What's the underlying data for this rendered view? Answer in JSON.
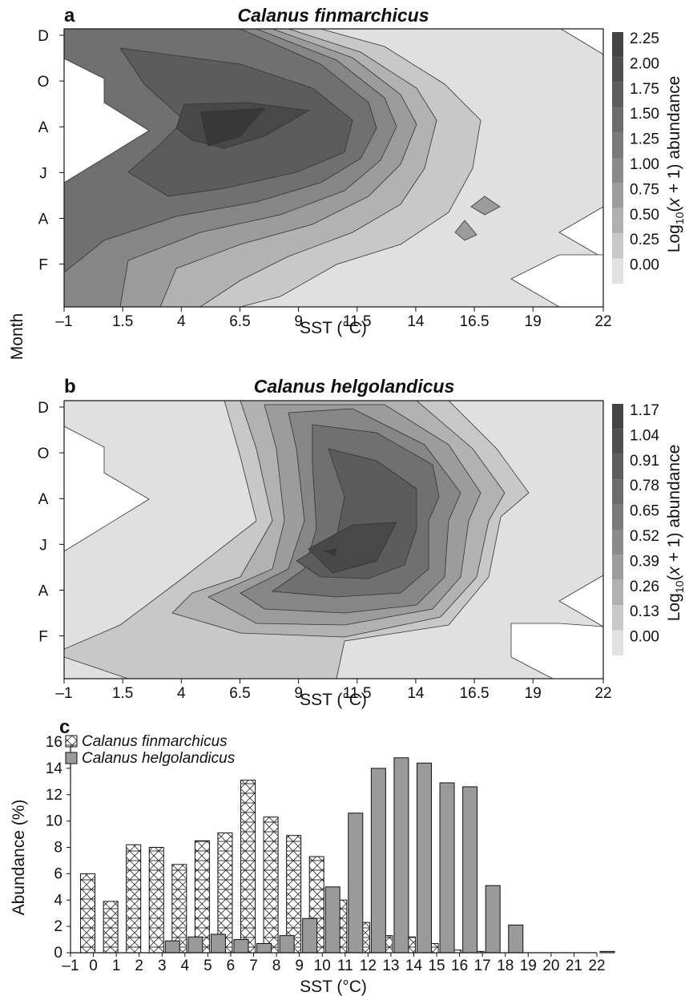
{
  "figure": {
    "y_shared_label": "Month"
  },
  "chart_data": [
    {
      "panel": "a",
      "type": "heatmap",
      "title": "Calanus finmarchicus",
      "xlabel": "SST (°C)",
      "ylabel": "Month",
      "x_ticks": [
        "–1",
        "1.5",
        "4",
        "6.5",
        "9",
        "11.5",
        "14",
        "16.5",
        "19",
        "22"
      ],
      "x_values": [
        -1,
        1.5,
        4,
        6.5,
        9,
        11.5,
        14,
        16.5,
        19,
        22
      ],
      "xlim": [
        -1,
        22
      ],
      "y_ticks": [
        "D",
        "O",
        "A",
        "J",
        "A",
        "F"
      ],
      "colorbar_label": "Log10(x + 1) abundance",
      "colorbar_levels": [
        "2.25",
        "2.00",
        "1.75",
        "1.50",
        "1.25",
        "1.00",
        "0.75",
        "0.50",
        "0.25",
        "0.00"
      ],
      "colorbar_range": [
        0,
        2.25
      ],
      "peak": {
        "sst": 5.5,
        "month": "Jul",
        "value": 2.1
      }
    },
    {
      "panel": "b",
      "type": "heatmap",
      "title": "Calanus helgolandicus",
      "xlabel": "SST (°C)",
      "ylabel": "Month",
      "x_ticks": [
        "–1",
        "1.5",
        "4",
        "6.5",
        "9",
        "11.5",
        "14",
        "16.5",
        "19",
        "22"
      ],
      "x_values": [
        -1,
        1.5,
        4,
        6.5,
        9,
        11.5,
        14,
        16.5,
        19,
        22
      ],
      "xlim": [
        -1,
        22
      ],
      "y_ticks": [
        "D",
        "O",
        "A",
        "J",
        "A",
        "F"
      ],
      "colorbar_label": "Log10(x + 1) abundance",
      "colorbar_levels": [
        "1.17",
        "1.04",
        "0.91",
        "0.78",
        "0.65",
        "0.52",
        "0.39",
        "0.26",
        "0.13",
        "0.00"
      ],
      "colorbar_range": [
        0,
        1.17
      ],
      "peak": {
        "sst": 11.5,
        "month": "May",
        "value": 1.1
      }
    },
    {
      "panel": "c",
      "type": "bar",
      "title": "",
      "xlabel": "SST (°C)",
      "ylabel": "Abundance (%)",
      "categories": [
        "–1",
        "0",
        "1",
        "2",
        "3",
        "4",
        "5",
        "6",
        "7",
        "8",
        "9",
        "10",
        "11",
        "12",
        "13",
        "14",
        "15",
        "16",
        "17",
        "18",
        "19",
        "20",
        "21",
        "22"
      ],
      "ylim": [
        0,
        16
      ],
      "y_ticks": [
        "0",
        "2",
        "4",
        "6",
        "8",
        "10",
        "12",
        "14",
        "16"
      ],
      "series": [
        {
          "name": "Calanus finmarchicus",
          "values": [
            0,
            6.0,
            3.9,
            8.2,
            8.0,
            6.7,
            8.5,
            9.1,
            13.1,
            10.3,
            8.9,
            7.3,
            4.0,
            2.3,
            1.3,
            1.2,
            0.7,
            0.2,
            0.1,
            0,
            0,
            0,
            0,
            0
          ]
        },
        {
          "name": "Calanus helgolandicus",
          "values": [
            0,
            0,
            0,
            0,
            0.9,
            1.2,
            1.4,
            1.0,
            0.7,
            1.3,
            2.6,
            5.0,
            10.6,
            14.0,
            14.8,
            14.4,
            12.9,
            12.6,
            5.1,
            2.1,
            0,
            0,
            0,
            0.1
          ]
        }
      ],
      "legend_placement": "top-left"
    }
  ]
}
